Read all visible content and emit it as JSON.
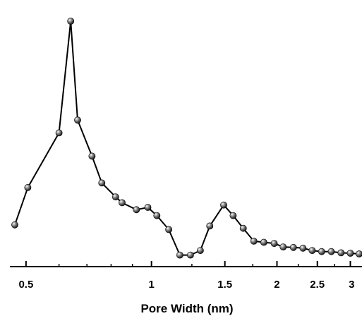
{
  "chart_data": {
    "type": "line",
    "title": "",
    "xlabel": "Pore Width (nm)",
    "ylabel": "",
    "xscale": "log",
    "xlim": [
      0.47,
      3.15
    ],
    "ylim": [
      0,
      1
    ],
    "grid": false,
    "legend": "none",
    "x_ticks": [
      0.5,
      1,
      1.5,
      2,
      2.5,
      3
    ],
    "x_tick_labels": [
      "0.5",
      "1",
      "1.5",
      "2",
      "2.5",
      "3"
    ],
    "series": [
      {
        "color": "#000000",
        "marker": "sphere",
        "x": [
          0.47,
          0.505,
          0.6,
          0.64,
          0.665,
          0.72,
          0.76,
          0.82,
          0.85,
          0.92,
          0.98,
          1.03,
          1.1,
          1.17,
          1.24,
          1.31,
          1.38,
          1.49,
          1.57,
          1.66,
          1.76,
          1.86,
          1.97,
          2.07,
          2.19,
          2.31,
          2.43,
          2.56,
          2.7,
          2.85,
          3.0,
          3.15
        ],
        "y": [
          0.125,
          0.285,
          0.52,
          1.0,
          0.575,
          0.42,
          0.305,
          0.245,
          0.22,
          0.19,
          0.2,
          0.165,
          0.105,
          -0.005,
          -0.005,
          0.015,
          0.12,
          0.21,
          0.165,
          0.11,
          0.055,
          0.05,
          0.045,
          0.03,
          0.028,
          0.025,
          0.015,
          0.01,
          0.01,
          0.005,
          0.003,
          0.0
        ]
      }
    ]
  }
}
